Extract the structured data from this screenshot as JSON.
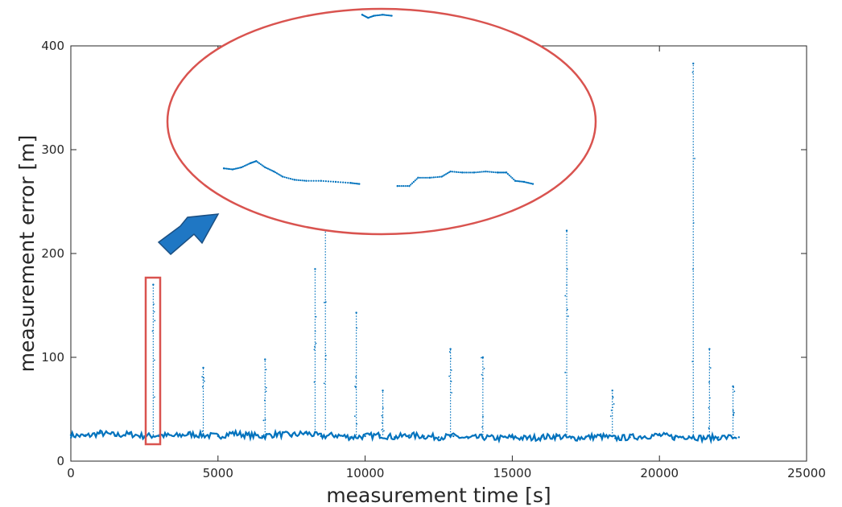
{
  "chart_data": {
    "type": "scatter",
    "xlabel": "measurement time [s]",
    "ylabel": "measurement error [m]",
    "xlim": [
      0,
      25000
    ],
    "ylim": [
      0,
      400
    ],
    "xticks": [
      "0",
      "5000",
      "10000",
      "15000",
      "20000",
      "25000"
    ],
    "yticks": [
      "0",
      "100",
      "200",
      "300",
      "400"
    ],
    "grid": false,
    "series_color": "#0072BD",
    "baseline_samples": [
      [
        0,
        25
      ],
      [
        500,
        24
      ],
      [
        1000,
        27
      ],
      [
        1500,
        25
      ],
      [
        2000,
        26
      ],
      [
        2500,
        24
      ],
      [
        3000,
        25
      ],
      [
        3500,
        24
      ],
      [
        4000,
        26
      ],
      [
        4500,
        25
      ],
      [
        5000,
        24
      ],
      [
        5500,
        27
      ],
      [
        6000,
        25
      ],
      [
        6500,
        24
      ],
      [
        7000,
        26
      ],
      [
        7500,
        25
      ],
      [
        8000,
        27
      ],
      [
        8500,
        24
      ],
      [
        9000,
        25
      ],
      [
        9500,
        23
      ],
      [
        10000,
        24
      ],
      [
        10500,
        25
      ],
      [
        11000,
        23
      ],
      [
        11500,
        25
      ],
      [
        12000,
        24
      ],
      [
        12500,
        23
      ],
      [
        13000,
        24
      ],
      [
        13500,
        22
      ],
      [
        14000,
        23
      ],
      [
        14500,
        22
      ],
      [
        15000,
        23
      ],
      [
        15500,
        22
      ],
      [
        16000,
        23
      ],
      [
        16500,
        24
      ],
      [
        17000,
        22
      ],
      [
        17500,
        23
      ],
      [
        18000,
        24
      ],
      [
        18500,
        22
      ],
      [
        19000,
        23
      ],
      [
        19500,
        24
      ],
      [
        20000,
        25
      ],
      [
        20500,
        23
      ],
      [
        21000,
        24
      ],
      [
        21500,
        22
      ],
      [
        22000,
        23
      ],
      [
        22700,
        23
      ]
    ],
    "spikes": [
      {
        "x": 2800,
        "min": 25,
        "max": 170
      },
      {
        "x": 4500,
        "min": 26,
        "max": 90
      },
      {
        "x": 6600,
        "min": 25,
        "max": 98
      },
      {
        "x": 8300,
        "min": 30,
        "max": 185
      },
      {
        "x": 8650,
        "min": 30,
        "max": 245
      },
      {
        "x": 9700,
        "min": 25,
        "max": 143
      },
      {
        "x": 10600,
        "min": 25,
        "max": 68
      },
      {
        "x": 12900,
        "min": 25,
        "max": 108
      },
      {
        "x": 14000,
        "min": 25,
        "max": 100
      },
      {
        "x": 16850,
        "min": 25,
        "max": 222
      },
      {
        "x": 18400,
        "min": 24,
        "max": 68
      },
      {
        "x": 21150,
        "min": 25,
        "max": 383
      },
      {
        "x": 21700,
        "min": 25,
        "max": 108
      },
      {
        "x": 22500,
        "min": 25,
        "max": 72
      }
    ],
    "callout_inset_points": [
      [
        5200,
        282
      ],
      [
        5500,
        281
      ],
      [
        5800,
        283
      ],
      [
        6100,
        287
      ],
      [
        6300,
        289
      ],
      [
        6600,
        283
      ],
      [
        6900,
        279
      ],
      [
        7200,
        274
      ],
      [
        7600,
        271
      ],
      [
        8000,
        270
      ],
      [
        8500,
        270
      ],
      [
        9000,
        269
      ],
      [
        9500,
        268
      ],
      [
        9800,
        267
      ],
      [
        11100,
        265
      ],
      [
        11500,
        265
      ],
      [
        11800,
        273
      ],
      [
        12200,
        273
      ],
      [
        12600,
        274
      ],
      [
        12900,
        279
      ],
      [
        13300,
        278
      ],
      [
        13700,
        278
      ],
      [
        14100,
        279
      ],
      [
        14500,
        278
      ],
      [
        14800,
        278
      ],
      [
        15100,
        270
      ],
      [
        15400,
        269
      ],
      [
        15700,
        267
      ]
    ],
    "callout_top_points": [
      [
        9900,
        430
      ],
      [
        10100,
        427
      ],
      [
        10300,
        429
      ],
      [
        10600,
        430
      ],
      [
        10900,
        429
      ]
    ],
    "annotation_color": "#D9534F",
    "arrow_color": "#1F77C4"
  }
}
